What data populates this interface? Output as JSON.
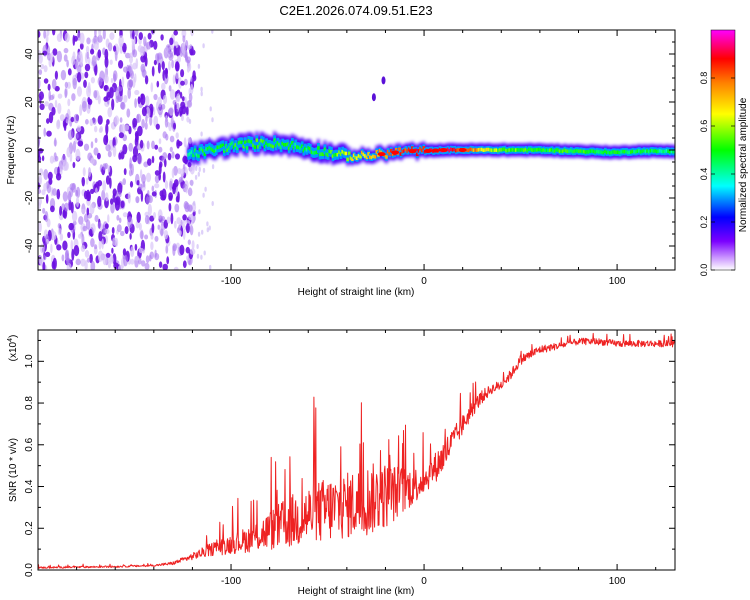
{
  "figure_title": "C2E1.2026.074.09.51.E23",
  "chart_data": [
    {
      "type": "heatmap",
      "title": "C2E1.2026.074.09.51.E23",
      "xlabel": "Height of straight line (km)",
      "ylabel": "Frequency (Hz)",
      "xlim": [
        -200,
        130
      ],
      "ylim": [
        -50,
        50
      ],
      "xticks": [
        -100,
        0,
        100
      ],
      "yticks": [
        -40,
        -20,
        0,
        20,
        40
      ],
      "colorbar": {
        "label": "Normalized spectral amplitude",
        "range": [
          0,
          1
        ],
        "ticks": [
          0.0,
          0.2,
          0.4,
          0.6,
          0.8
        ],
        "colors": [
          "#ffffff",
          "#7b00ff",
          "#0000ff",
          "#00ffff",
          "#00ff00",
          "#ffff00",
          "#ff8000",
          "#ff0000",
          "#ff00ff"
        ]
      },
      "noise_region_x": [
        -200,
        -122
      ],
      "ridge": {
        "x": [
          -122,
          -110,
          -100,
          -90,
          -80,
          -70,
          -60,
          -50,
          -40,
          -30,
          -20,
          -10,
          0,
          10,
          20,
          40,
          60,
          80,
          100,
          110,
          130
        ],
        "frequency": [
          -2,
          0,
          1.5,
          2.5,
          3,
          2,
          0.5,
          -1,
          -2.5,
          -2.5,
          -1.5,
          -0.5,
          -0.5,
          0,
          0,
          0,
          0,
          -0.5,
          -1,
          -0.5,
          -0.5
        ],
        "amplitude": [
          0.45,
          0.48,
          0.5,
          0.52,
          0.5,
          0.48,
          0.45,
          0.5,
          0.6,
          0.7,
          0.78,
          0.85,
          0.85,
          0.9,
          0.85,
          0.55,
          0.5,
          0.5,
          0.48,
          0.45,
          0.45
        ]
      },
      "peaks_x": [
        -22,
        -15,
        -6,
        2,
        6,
        10,
        20
      ],
      "stray_features": [
        {
          "x": -26,
          "frequency": 22
        },
        {
          "x": -21,
          "frequency": 29
        }
      ]
    },
    {
      "type": "line",
      "xlabel": "Height of straight line (km)",
      "ylabel": "SNR (10 * v/v)",
      "y_scale_label": "(x10",
      "y_scale_exponent": "4",
      "y_scale_suffix": ")",
      "xlim": [
        -200,
        130
      ],
      "ylim": [
        0,
        1.15
      ],
      "xticks": [
        -100,
        0,
        100
      ],
      "yticks": [
        0.0,
        0.2,
        0.4,
        0.6,
        0.8,
        1.0
      ],
      "color": "#ee2222",
      "series": [
        {
          "name": "SNR",
          "trend_x": [
            -200,
            -160,
            -140,
            -130,
            -120,
            -110,
            -100,
            -90,
            -80,
            -70,
            -60,
            -50,
            -40,
            -30,
            -20,
            -10,
            0,
            5,
            10,
            15,
            20,
            25,
            30,
            35,
            40,
            45,
            50,
            60,
            70,
            80,
            90,
            100,
            110,
            130
          ],
          "trend_y": [
            0.01,
            0.015,
            0.02,
            0.03,
            0.06,
            0.09,
            0.11,
            0.13,
            0.16,
            0.19,
            0.22,
            0.24,
            0.26,
            0.28,
            0.31,
            0.35,
            0.41,
            0.46,
            0.52,
            0.6,
            0.68,
            0.76,
            0.82,
            0.86,
            0.88,
            0.93,
            1.0,
            1.05,
            1.07,
            1.09,
            1.09,
            1.08,
            1.08,
            1.08
          ],
          "noise_amplitude": [
            0.005,
            0.005,
            0.005,
            0.01,
            0.02,
            0.04,
            0.06,
            0.08,
            0.12,
            0.16,
            0.18,
            0.2,
            0.2,
            0.22,
            0.2,
            0.14,
            0.08,
            0.09,
            0.1,
            0.08,
            0.06,
            0.05,
            0.04,
            0.03,
            0.03,
            0.03,
            0.03,
            0.025,
            0.02,
            0.02,
            0.02,
            0.02,
            0.02,
            0.02
          ]
        }
      ]
    }
  ]
}
